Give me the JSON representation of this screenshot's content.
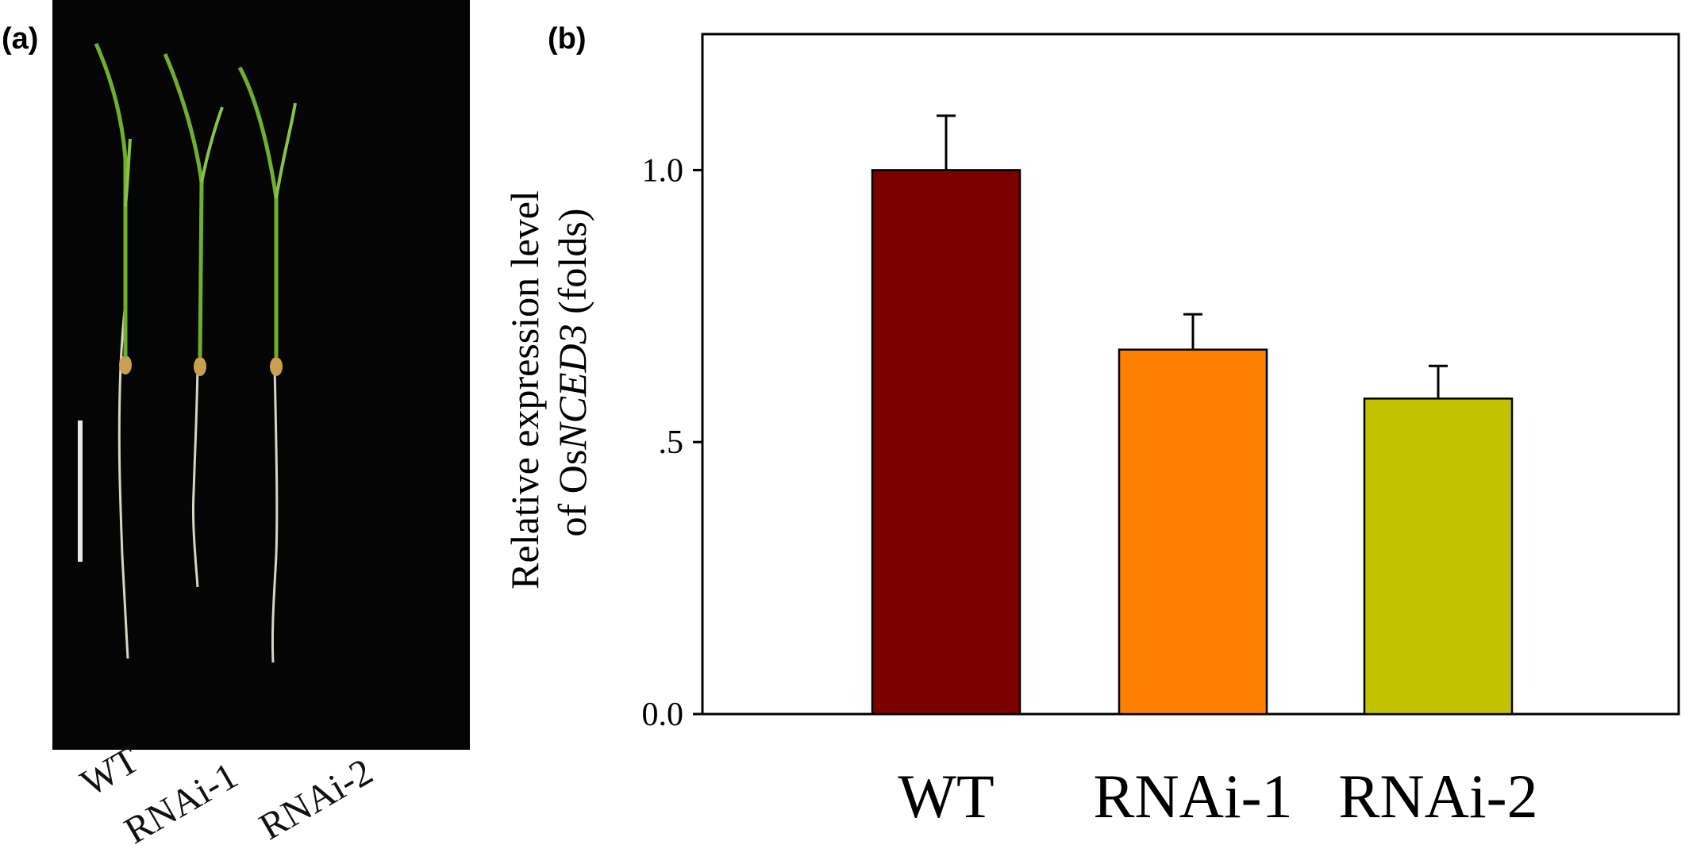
{
  "panel_a": {
    "label": "(a)",
    "seedlings": [
      "WT",
      "RNAi-1",
      "RNAi-2"
    ]
  },
  "panel_b": {
    "label": "(b)"
  },
  "chart_data": {
    "type": "bar",
    "categories": [
      "WT",
      "RNAi-1",
      "RNAi-2"
    ],
    "values": [
      1.0,
      0.67,
      0.58
    ],
    "errors": [
      0.1,
      0.065,
      0.06
    ],
    "colors": [
      "#7b0000",
      "#ff8000",
      "#c2c200"
    ],
    "ylabel_line1": "Relative expression level",
    "ylabel_line2_prefix": "of Os",
    "ylabel_line2_italic": "NCED3",
    "ylabel_line2_suffix": " (folds)",
    "ylim": [
      0,
      1.25
    ],
    "yticks": [
      0,
      0.5,
      1.0
    ],
    "ytick_labels": [
      "0.0",
      ".5",
      "1.0"
    ],
    "grid": false
  }
}
